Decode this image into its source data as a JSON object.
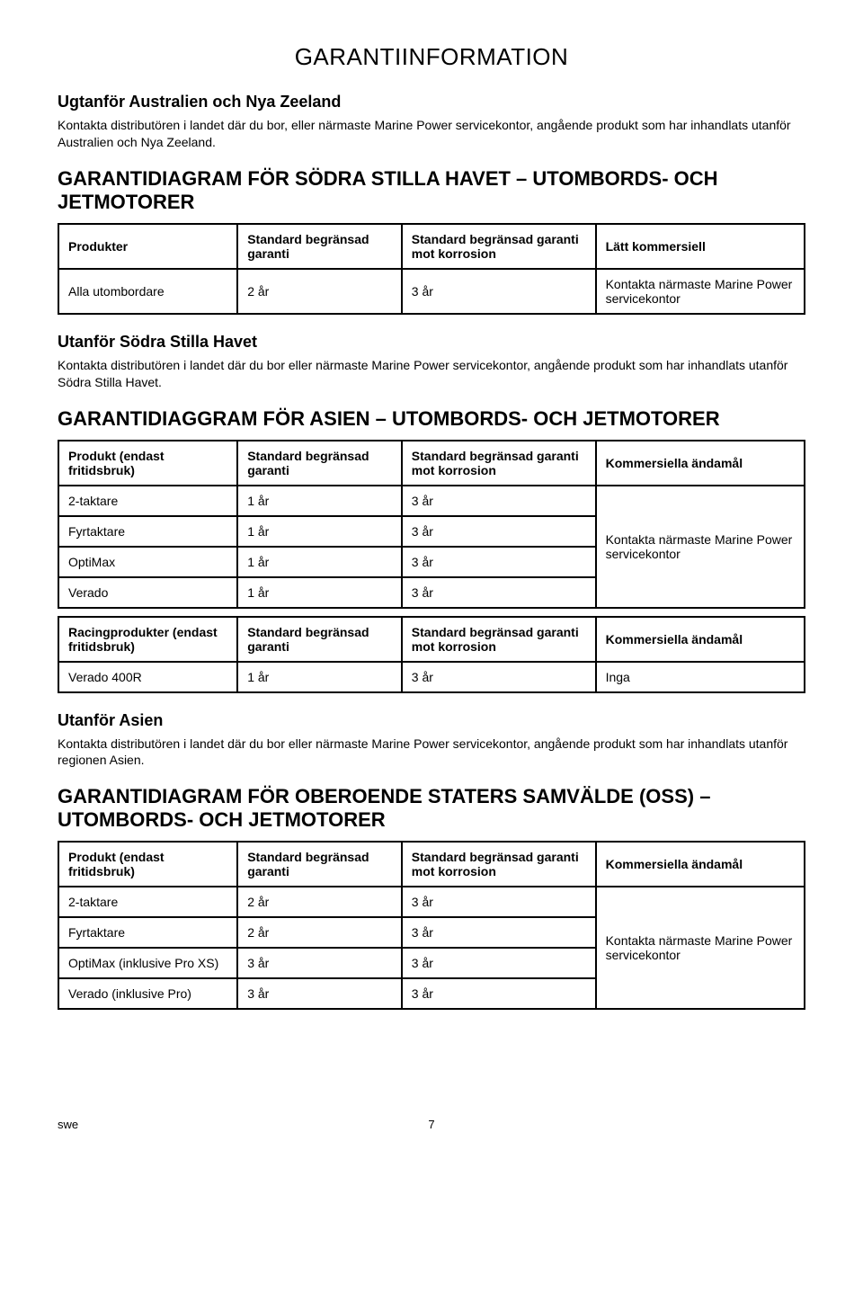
{
  "doc_title": "GARANTIINFORMATION",
  "section1": {
    "title": "Ugtanför Australien och Nya Zeeland",
    "body": "Kontakta distributören i landet där du bor, eller närmaste Marine Power servicekontor, angående produkt som har inhandlats utanför Australien och Nya Zeeland."
  },
  "section2": {
    "title": "GARANTIDIAGRAM FÖR SÖDRA STILLA HAVET – UTOMBORDS- OCH JETMOTORER",
    "headers": [
      "Produkter",
      "Standard begränsad garanti",
      "Standard begränsad garanti mot korrosion",
      "Lätt kommersiell"
    ],
    "row": {
      "c1": "Alla utombordare",
      "c2": "2 år",
      "c3": "3 år",
      "c4": "Kontakta närmaste Marine Power servicekontor"
    }
  },
  "section3": {
    "title": "Utanför Södra Stilla Havet",
    "body": "Kontakta distributören i landet där du bor eller närmaste Marine Power servicekontor, angående produkt som har inhandlats utanför Södra Stilla Havet."
  },
  "section4": {
    "title": "GARANTIDIAGGRAM FÖR ASIEN – UTOMBORDS- OCH JETMOTORER",
    "table1": {
      "headers": [
        "Produkt (endast fritidsbruk)",
        "Standard begränsad garanti",
        "Standard begränsad garanti mot korrosion",
        "Kommersiella ändamål"
      ],
      "rows": [
        {
          "c1": "2-taktare",
          "c2": "1 år",
          "c3": "3 år"
        },
        {
          "c1": "Fyrtaktare",
          "c2": "1 år",
          "c3": "3 år"
        },
        {
          "c1": "OptiMax",
          "c2": "1 år",
          "c3": "3 år"
        },
        {
          "c1": "Verado",
          "c2": "1 år",
          "c3": "3 år"
        }
      ],
      "merged": "Kontakta närmaste Marine Power servicekontor"
    },
    "table2": {
      "headers": [
        "Racingprodukter (endast fritidsbruk)",
        "Standard begränsad garanti",
        "Standard begränsad garanti mot korrosion",
        "Kommersiella ändamål"
      ],
      "row": {
        "c1": "Verado 400R",
        "c2": "1 år",
        "c3": "3 år",
        "c4": "Inga"
      }
    }
  },
  "section5": {
    "title": "Utanför Asien",
    "body": "Kontakta distributören i landet där du bor eller närmaste Marine Power servicekontor, angående produkt som har inhandlats utanför regionen Asien."
  },
  "section6": {
    "title": "GARANTIDIAGRAM FÖR OBEROENDE STATERS SAMVÄLDE (OSS) – UTOMBORDS- OCH JETMOTORER",
    "table": {
      "headers": [
        "Produkt (endast fritidsbruk)",
        "Standard begränsad garanti",
        "Standard begränsad garanti mot korrosion",
        "Kommersiella ändamål"
      ],
      "rows": [
        {
          "c1": "2-taktare",
          "c2": "2 år",
          "c3": "3 år"
        },
        {
          "c1": "Fyrtaktare",
          "c2": "2 år",
          "c3": "3 år"
        },
        {
          "c1": "OptiMax (inklusive Pro XS)",
          "c2": "3 år",
          "c3": "3 år"
        },
        {
          "c1": "Verado (inklusive Pro)",
          "c2": "3 år",
          "c3": "3 år"
        }
      ],
      "merged": "Kontakta närmaste Marine Power servicekontor"
    }
  },
  "footer": {
    "left": "swe",
    "page": "7"
  }
}
